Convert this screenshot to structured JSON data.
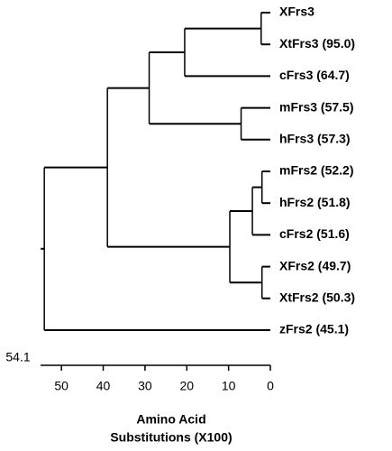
{
  "chart_data": {
    "type": "dendrogram",
    "tree": {
      "height": 54.1,
      "children": [
        {
          "height": 39,
          "children": [
            {
              "height": 29,
              "children": [
                {
                  "height": 20.5,
                  "children": [
                    {
                      "height": 2.2,
                      "children": [
                        {
                          "label": "XFrs3"
                        },
                        {
                          "label": "XtFrs3 (95.0)"
                        }
                      ]
                    },
                    {
                      "label": "cFrs3 (64.7)"
                    }
                  ]
                },
                {
                  "height": 7,
                  "children": [
                    {
                      "label": "mFrs3 (57.5)"
                    },
                    {
                      "label": "hFrs3 (57.3)"
                    }
                  ]
                }
              ]
            },
            {
              "height": 9.7,
              "children": [
                {
                  "height": 4.3,
                  "children": [
                    {
                      "height": 2,
                      "children": [
                        {
                          "label": "mFrs2 (52.2)"
                        },
                        {
                          "label": "hFrs2 (51.8)"
                        }
                      ]
                    },
                    {
                      "label": "cFrs2 (51.6)"
                    }
                  ]
                },
                {
                  "height": 2,
                  "children": [
                    {
                      "label": "XFrs2 (49.7)"
                    },
                    {
                      "label": "XtFrs2 (50.3)"
                    }
                  ]
                }
              ]
            }
          ]
        },
        {
          "label": "zFrs2 (45.1)"
        }
      ]
    },
    "xlim": [
      55,
      0
    ],
    "xticks": [
      50,
      40,
      30,
      20,
      10,
      0
    ],
    "xlabel": [
      "Amino Acid",
      "Substitutions (X100)"
    ],
    "color": "#000000"
  }
}
